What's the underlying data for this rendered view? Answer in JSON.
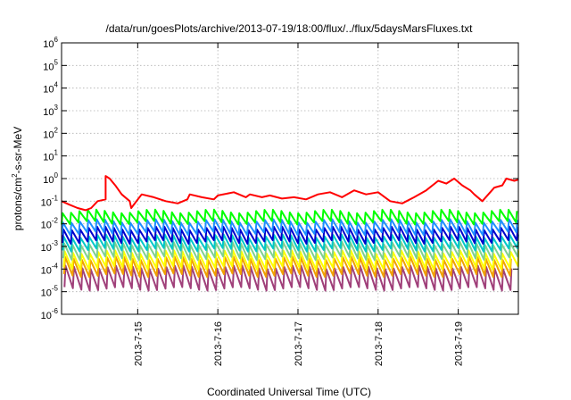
{
  "chart_data": {
    "type": "line",
    "title": "/data/run/goesPlots/archive/2013-07-19/18:00/flux/../flux/5daysMarsFluxes.txt",
    "xlabel": "Coordinated Universal Time (UTC)",
    "ylabel_parts": [
      "protons/cm",
      "2",
      "-s-sr-MeV"
    ],
    "yscale": "log",
    "ylim": [
      1e-06,
      1000000.0
    ],
    "xlim": [
      14.05,
      19.75
    ],
    "grid": true,
    "legend": "none",
    "y_ticks": [
      {
        "base": "10",
        "exp": "-6",
        "value": -6
      },
      {
        "base": "10",
        "exp": "-5",
        "value": -5
      },
      {
        "base": "10",
        "exp": "-4",
        "value": -4
      },
      {
        "base": "10",
        "exp": "-3",
        "value": -3
      },
      {
        "base": "10",
        "exp": "-2",
        "value": -2
      },
      {
        "base": "10",
        "exp": "-1",
        "value": -1
      },
      {
        "base": "10",
        "exp": "0",
        "value": 0
      },
      {
        "base": "10",
        "exp": "1",
        "value": 1
      },
      {
        "base": "10",
        "exp": "2",
        "value": 2
      },
      {
        "base": "10",
        "exp": "3",
        "value": 3
      },
      {
        "base": "10",
        "exp": "4",
        "value": 4
      },
      {
        "base": "10",
        "exp": "5",
        "value": 5
      },
      {
        "base": "10",
        "exp": "6",
        "value": 6
      }
    ],
    "x_ticks": [
      {
        "label": "2013-7-15",
        "value": 15
      },
      {
        "label": "2013-7-16",
        "value": 16
      },
      {
        "label": "2013-7-17",
        "value": 17
      },
      {
        "label": "2013-7-18",
        "value": 18
      },
      {
        "label": "2013-7-19",
        "value": 19
      }
    ],
    "series": [
      {
        "color": "#ff0000",
        "x": [
          14.05,
          14.15,
          14.25,
          14.35,
          14.42,
          14.5,
          14.6,
          14.6,
          14.65,
          14.72,
          14.8,
          14.9,
          14.92,
          15.05,
          15.2,
          15.35,
          15.5,
          15.62,
          15.65,
          15.8,
          15.95,
          16.0,
          16.2,
          16.35,
          16.4,
          16.55,
          16.65,
          16.8,
          16.95,
          17.1,
          17.25,
          17.4,
          17.55,
          17.7,
          17.85,
          18.0,
          18.15,
          18.3,
          18.45,
          18.6,
          18.75,
          18.85,
          18.95,
          19.05,
          19.15,
          19.2,
          19.3,
          19.45,
          19.55,
          19.6,
          19.7,
          19.75
        ],
        "y": [
          0.1,
          0.07,
          0.05,
          0.04,
          0.05,
          0.1,
          0.12,
          1.3,
          1.0,
          0.5,
          0.2,
          0.1,
          0.05,
          0.2,
          0.15,
          0.1,
          0.08,
          0.12,
          0.2,
          0.15,
          0.12,
          0.18,
          0.25,
          0.15,
          0.2,
          0.15,
          0.18,
          0.13,
          0.15,
          0.12,
          0.2,
          0.25,
          0.15,
          0.3,
          0.2,
          0.25,
          0.1,
          0.08,
          0.15,
          0.3,
          0.8,
          0.6,
          1.0,
          0.5,
          0.3,
          0.2,
          0.1,
          0.4,
          0.5,
          1.0,
          0.8,
          0.9
        ]
      },
      {
        "color": "#00ff00",
        "base": -1.7,
        "amp": 0.5,
        "phase": 0.0
      },
      {
        "color": "#1f8fff",
        "base": -2.15,
        "amp": 0.55,
        "phase": 0.05
      },
      {
        "color": "#0000cc",
        "base": -2.5,
        "amp": 0.6,
        "phase": 0.1
      },
      {
        "color": "#00c8c8",
        "base": -2.85,
        "amp": 0.6,
        "phase": 0.15
      },
      {
        "color": "#7fd08f",
        "base": -3.2,
        "amp": 0.65,
        "phase": 0.2
      },
      {
        "color": "#ffff00",
        "base": -3.6,
        "amp": 0.7,
        "phase": 0.25
      },
      {
        "color": "#f0a000",
        "base": -3.9,
        "amp": 0.75,
        "phase": 0.3
      },
      {
        "color": "#a0407a",
        "base": -4.4,
        "amp": 0.95,
        "phase": 0.35
      }
    ]
  }
}
